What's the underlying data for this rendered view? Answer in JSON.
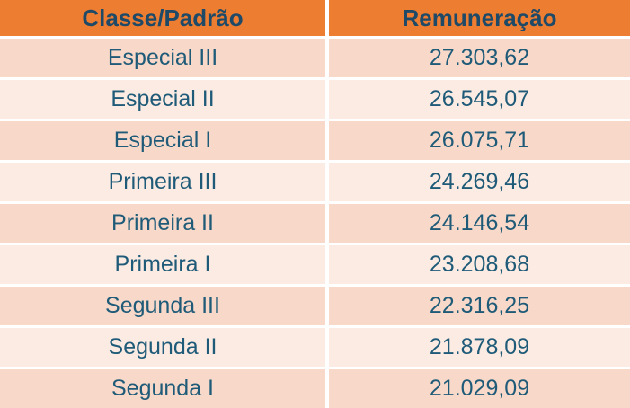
{
  "table": {
    "columns": [
      "Classe/Padrão",
      "Remuneração"
    ],
    "rows": [
      {
        "classe": "Especial III",
        "remuneracao": "27.303,62"
      },
      {
        "classe": "Especial II",
        "remuneracao": "26.545,07"
      },
      {
        "classe": "Especial I",
        "remuneracao": "26.075,71"
      },
      {
        "classe": "Primeira III",
        "remuneracao": "24.269,46"
      },
      {
        "classe": "Primeira II",
        "remuneracao": "24.146,54"
      },
      {
        "classe": "Primeira I",
        "remuneracao": "23.208,68"
      },
      {
        "classe": "Segunda III",
        "remuneracao": "22.316,25"
      },
      {
        "classe": "Segunda II",
        "remuneracao": "21.878,09"
      },
      {
        "classe": "Segunda I",
        "remuneracao": "21.029,09"
      }
    ]
  },
  "colors": {
    "header_bg": "#ED7D31",
    "header_text": "#1E4A68",
    "body_text": "#1F5B78",
    "row_dark": "#F8D9C9",
    "row_light": "#FBEBE3",
    "separator": "#FFFFFF"
  }
}
